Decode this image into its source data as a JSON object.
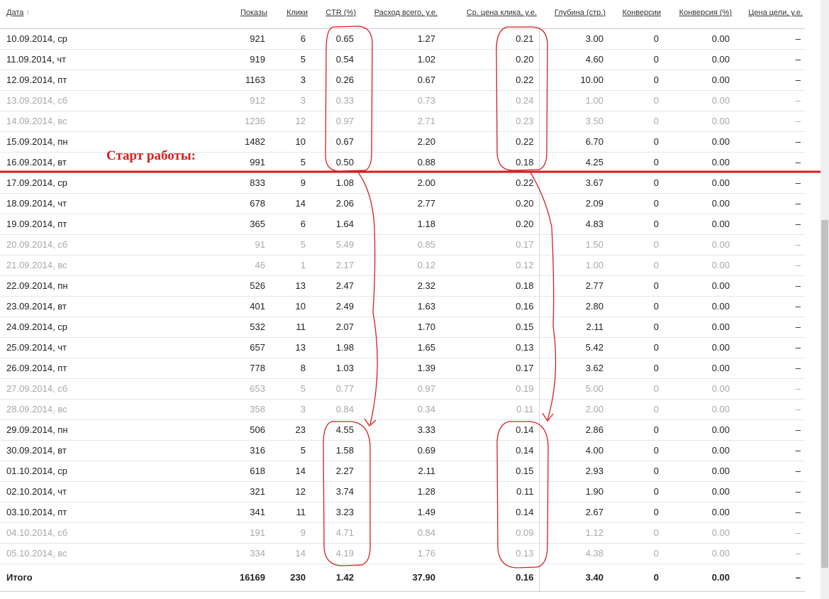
{
  "table": {
    "header": [
      "Дата",
      "Показы",
      "Клики",
      "CTR (%)",
      "Расход всего, у.е.",
      "Ср. цена клика, у.е.",
      "Глубина (стр.)",
      "Конверсии",
      "Конверсия (%)",
      "Цена цели, у.е."
    ],
    "rows": [
      [
        "10.09.2014, ср",
        "921",
        "6",
        "0.65",
        "1.27",
        "0.21",
        "3.00",
        "0",
        "0.00",
        "–"
      ],
      [
        "11.09.2014, чт",
        "919",
        "5",
        "0.54",
        "1.02",
        "0.20",
        "4.60",
        "0",
        "0.00",
        "–"
      ],
      [
        "12.09.2014, пт",
        "1163",
        "3",
        "0.26",
        "0.67",
        "0.22",
        "10.00",
        "0",
        "0.00",
        "–"
      ],
      [
        "13.09.2014, сб",
        "912",
        "3",
        "0.33",
        "0.73",
        "0.24",
        "1.00",
        "0",
        "0.00",
        "–"
      ],
      [
        "14.09.2014, вс",
        "1236",
        "12",
        "0.97",
        "2.71",
        "0.23",
        "3.50",
        "0",
        "0.00",
        "–"
      ],
      [
        "15.09.2014, пн",
        "1482",
        "10",
        "0.67",
        "2.20",
        "0.22",
        "6.70",
        "0",
        "0.00",
        "–"
      ],
      [
        "16.09.2014, вт",
        "991",
        "5",
        "0.50",
        "0.88",
        "0.18",
        "4.25",
        "0",
        "0.00",
        "–"
      ],
      [
        "17.09.2014, ср",
        "833",
        "9",
        "1.08",
        "2.00",
        "0.22",
        "3.67",
        "0",
        "0.00",
        "–"
      ],
      [
        "18.09.2014, чт",
        "678",
        "14",
        "2.06",
        "2.77",
        "0.20",
        "2.09",
        "0",
        "0.00",
        "–"
      ],
      [
        "19.09.2014, пт",
        "365",
        "6",
        "1.64",
        "1.18",
        "0.20",
        "4.83",
        "0",
        "0.00",
        "–"
      ],
      [
        "20.09.2014, сб",
        "91",
        "5",
        "5.49",
        "0.85",
        "0.17",
        "1.50",
        "0",
        "0.00",
        "–"
      ],
      [
        "21.09.2014, вс",
        "46",
        "1",
        "2.17",
        "0.12",
        "0.12",
        "1.00",
        "0",
        "0.00",
        "–"
      ],
      [
        "22.09.2014, пн",
        "526",
        "13",
        "2.47",
        "2.32",
        "0.18",
        "2.77",
        "0",
        "0.00",
        "–"
      ],
      [
        "23.09.2014, вт",
        "401",
        "10",
        "2.49",
        "1.63",
        "0.16",
        "2.80",
        "0",
        "0.00",
        "–"
      ],
      [
        "24.09.2014, ср",
        "532",
        "11",
        "2.07",
        "1.70",
        "0.15",
        "2.11",
        "0",
        "0.00",
        "–"
      ],
      [
        "25.09.2014, чт",
        "657",
        "13",
        "1.98",
        "1.65",
        "0.13",
        "5.42",
        "0",
        "0.00",
        "–"
      ],
      [
        "26.09.2014, пт",
        "778",
        "8",
        "1.03",
        "1.39",
        "0.17",
        "3.62",
        "0",
        "0.00",
        "–"
      ],
      [
        "27.09.2014, сб",
        "653",
        "5",
        "0.77",
        "0.97",
        "0.19",
        "5.00",
        "0",
        "0.00",
        "–"
      ],
      [
        "28.09.2014, вс",
        "358",
        "3",
        "0.84",
        "0.34",
        "0.11",
        "2.00",
        "0",
        "0.00",
        "–"
      ],
      [
        "29.09.2014, пн",
        "506",
        "23",
        "4.55",
        "3.33",
        "0.14",
        "2.86",
        "0",
        "0.00",
        "–"
      ],
      [
        "30.09.2014, вт",
        "316",
        "5",
        "1.58",
        "0.69",
        "0.14",
        "4.00",
        "0",
        "0.00",
        "–"
      ],
      [
        "01.10.2014, ср",
        "618",
        "14",
        "2.27",
        "2.11",
        "0.15",
        "2.93",
        "0",
        "0.00",
        "–"
      ],
      [
        "02.10.2014, чт",
        "321",
        "12",
        "3.74",
        "1.28",
        "0.11",
        "1.90",
        "0",
        "0.00",
        "–"
      ],
      [
        "03.10.2014, пт",
        "341",
        "11",
        "3.23",
        "1.49",
        "0.14",
        "2.67",
        "0",
        "0.00",
        "–"
      ],
      [
        "04.10.2014, сб",
        "191",
        "9",
        "4.71",
        "0.84",
        "0.09",
        "1.12",
        "0",
        "0.00",
        "–"
      ],
      [
        "05.10.2014, вс",
        "334",
        "14",
        "4.19",
        "1.76",
        "0.13",
        "4.38",
        "0",
        "0.00",
        "–"
      ]
    ],
    "total": [
      "Итого",
      "16169",
      "230",
      "1.42",
      "37.90",
      "0.16",
      "3.40",
      "0",
      "0.00",
      "–"
    ]
  },
  "annotation": "Старт работы:"
}
